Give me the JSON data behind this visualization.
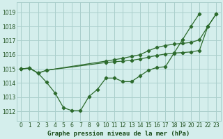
{
  "title": "Graphe pression niveau de la mer (hPa)",
  "background_color": "#d4eeec",
  "grid_color": "#aacfcc",
  "line_color": "#2d6b2d",
  "xlim": [
    -0.5,
    23.5
  ],
  "ylim": [
    1011.3,
    1019.7
  ],
  "yticks": [
    1012,
    1013,
    1014,
    1015,
    1016,
    1017,
    1018,
    1019
  ],
  "xticks": [
    0,
    1,
    2,
    3,
    4,
    5,
    6,
    7,
    8,
    9,
    10,
    11,
    12,
    13,
    14,
    15,
    16,
    17,
    18,
    19,
    20,
    21,
    22,
    23
  ],
  "series": [
    {
      "x": [
        0,
        1,
        2,
        3,
        4,
        5,
        6,
        7,
        8,
        9,
        10,
        11,
        12,
        13,
        14,
        15,
        16,
        17,
        18,
        19,
        20,
        21,
        22,
        23
      ],
      "y": [
        1015.0,
        1015.05,
        1014.7,
        1014.05,
        1013.3,
        1012.25,
        1012.05,
        1012.05,
        1013.05,
        1013.55,
        1014.35,
        1014.35,
        1014.1,
        1014.1,
        1014.5,
        1014.9,
        1015.1,
        1015.15,
        1016.1,
        1017.05,
        1018.0,
        1018.9,
        null,
        null
      ],
      "marker": true
    },
    {
      "x": [
        0,
        1,
        2,
        3,
        10,
        11,
        12,
        13,
        14,
        15,
        16,
        17,
        18,
        19,
        20,
        21,
        22,
        23
      ],
      "y": [
        1015.0,
        1015.05,
        1014.7,
        1014.9,
        1015.45,
        1015.5,
        1015.55,
        1015.6,
        1015.7,
        1015.8,
        1015.95,
        1016.05,
        1016.12,
        1016.15,
        1016.2,
        1016.3,
        1018.0,
        1018.9
      ],
      "marker": true
    },
    {
      "x": [
        0,
        1,
        2,
        3,
        10,
        11,
        12,
        13,
        14,
        15,
        16,
        17,
        18,
        19,
        20,
        21,
        22,
        23
      ],
      "y": [
        1015.0,
        1015.05,
        1014.7,
        1014.9,
        1015.55,
        1015.65,
        1015.75,
        1015.85,
        1016.0,
        1016.25,
        1016.5,
        1016.65,
        1016.75,
        1016.8,
        1016.85,
        1017.05,
        1018.0,
        1018.9
      ],
      "marker": true
    }
  ],
  "ylabel_fontsize": 6.0,
  "tick_fontsize": 5.5,
  "tick_color": "#1a4d1a",
  "xlabel_fontsize": 6.5,
  "xlabel_color": "#1a4d1a"
}
